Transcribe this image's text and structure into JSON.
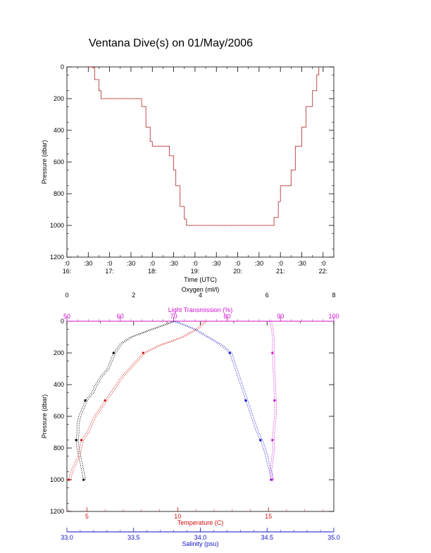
{
  "title": "Ventana Dive(s) on 01/May/2006",
  "colors": {
    "black": "#000000",
    "red": "#d01010",
    "blue": "#1010c8",
    "magenta": "#d010d0"
  },
  "chart_data": [
    {
      "type": "line",
      "xlabel": "Time (UTC)",
      "ylabel": "Pressure (dbar)",
      "yticks": [
        "0",
        "200",
        "400",
        "600",
        "800",
        "1000",
        "1200"
      ],
      "ylim": [
        1200,
        0
      ],
      "xlim": [
        0,
        12.5
      ],
      "xticks_top": [
        ":0",
        ":30",
        ":0",
        ":30",
        ":0",
        ":30",
        ":0",
        ":30",
        ":0",
        ":30",
        ":0",
        ":30",
        ":0"
      ],
      "xticks_bottom": [
        "16:",
        "17:",
        "18:",
        "19:",
        "20:",
        "21:",
        "22:"
      ],
      "series": [
        {
          "values_x": [
            1.0,
            1.2,
            1.3,
            1.5,
            1.6,
            3.4,
            3.5,
            3.7,
            3.9,
            4.0,
            4.7,
            4.8,
            5.0,
            5.1,
            5.3,
            5.5,
            5.6,
            9.6,
            9.7,
            9.9,
            10.0,
            10.2,
            10.5,
            10.7,
            11.0,
            11.2,
            11.5,
            11.7,
            11.8
          ],
          "values_y": [
            0,
            5,
            80,
            150,
            200,
            200,
            250,
            380,
            470,
            500,
            500,
            560,
            650,
            750,
            880,
            960,
            1000,
            1000,
            950,
            850,
            750,
            750,
            650,
            500,
            380,
            250,
            150,
            50,
            0
          ]
        }
      ]
    },
    {
      "type": "scatter",
      "ylabel": "Pressure (dbar)",
      "yticks": [
        "0",
        "200",
        "400",
        "600",
        "800",
        "1000",
        "1200"
      ],
      "ylim": [
        1200,
        0
      ],
      "axes": {
        "oxygen": {
          "label": "Oxygen (ml/l)",
          "ticks": [
            "0",
            "2",
            "4",
            "6",
            "8"
          ],
          "range": [
            0,
            8
          ]
        },
        "light": {
          "label": "Light Transmission (%)",
          "ticks": [
            "50",
            "60",
            "70",
            "80",
            "90",
            "100"
          ],
          "range": [
            50,
            100
          ]
        },
        "temperature": {
          "label": "Temperature (C)",
          "ticks": [
            "5",
            "10",
            "15"
          ],
          "range": [
            3.9,
            18.6
          ]
        },
        "salinity": {
          "label": "Salinity (psu)",
          "ticks": [
            "33.0",
            "33.5",
            "34.0",
            "34.5",
            "35.0"
          ],
          "range": [
            33.0,
            35.0
          ]
        }
      },
      "series": [
        {
          "axis": "oxygen",
          "pressure": [
            0,
            30,
            60,
            100,
            140,
            170,
            200,
            250,
            300,
            350,
            400,
            450,
            500,
            550,
            600,
            650,
            700,
            750,
            800,
            850,
            900,
            950,
            1000
          ],
          "values": [
            3.2,
            2.8,
            2.4,
            1.9,
            1.6,
            1.5,
            1.4,
            1.3,
            1.2,
            1.0,
            0.85,
            0.75,
            0.55,
            0.45,
            0.35,
            0.3,
            0.3,
            0.28,
            0.3,
            0.35,
            0.4,
            0.45,
            0.5
          ]
        },
        {
          "axis": "temperature",
          "pressure": [
            0,
            50,
            100,
            130,
            150,
            200,
            250,
            300,
            350,
            400,
            450,
            500,
            550,
            600,
            650,
            700,
            750,
            800,
            850,
            900,
            950,
            1000
          ],
          "values": [
            11.5,
            11.0,
            10.2,
            9.5,
            9.0,
            8.1,
            7.7,
            7.3,
            6.9,
            6.6,
            6.3,
            6.0,
            5.7,
            5.4,
            5.2,
            5.0,
            4.7,
            4.6,
            4.5,
            4.3,
            4.1,
            4.0
          ]
        },
        {
          "axis": "salinity",
          "pressure": [
            0,
            50,
            100,
            150,
            200,
            250,
            300,
            350,
            400,
            450,
            500,
            550,
            600,
            650,
            700,
            750,
            800,
            850,
            900,
            950,
            1000
          ],
          "values": [
            33.8,
            33.95,
            34.05,
            34.15,
            34.22,
            34.24,
            34.26,
            34.28,
            34.3,
            34.32,
            34.34,
            34.36,
            34.38,
            34.4,
            34.42,
            34.45,
            34.47,
            34.49,
            34.5,
            34.52,
            34.53
          ]
        },
        {
          "axis": "light",
          "pressure": [
            0,
            50,
            100,
            150,
            200,
            250,
            300,
            350,
            400,
            450,
            500,
            550,
            600,
            650,
            700,
            750,
            800,
            850,
            900,
            950,
            1000
          ],
          "values": [
            88.0,
            88.3,
            88.5,
            88.5,
            88.5,
            88.6,
            88.6,
            88.7,
            88.8,
            88.8,
            88.9,
            88.9,
            88.9,
            88.7,
            88.6,
            88.5,
            88.6,
            88.4,
            88.2,
            88.0,
            88.4
          ]
        }
      ],
      "markers": [
        {
          "axis": "oxygen",
          "points": [
            [
              1.4,
              200
            ],
            [
              0.55,
              500
            ],
            [
              0.28,
              750
            ],
            [
              0.5,
              1000
            ]
          ]
        },
        {
          "axis": "temperature",
          "points": [
            [
              8.1,
              200
            ],
            [
              6.0,
              500
            ],
            [
              4.7,
              750
            ],
            [
              4.0,
              1000
            ]
          ]
        },
        {
          "axis": "salinity",
          "points": [
            [
              34.22,
              200
            ],
            [
              34.34,
              500
            ],
            [
              34.45,
              750
            ],
            [
              34.53,
              1000
            ]
          ]
        },
        {
          "axis": "light",
          "points": [
            [
              88.5,
              200
            ],
            [
              88.9,
              500
            ],
            [
              88.5,
              750
            ],
            [
              88.4,
              1000
            ]
          ]
        }
      ]
    }
  ]
}
